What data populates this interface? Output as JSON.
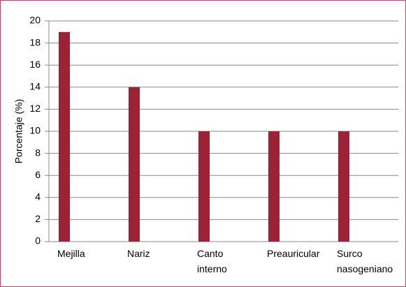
{
  "chart_data": {
    "type": "bar",
    "y_label": "Porcentaje (%)",
    "categories": [
      "Mejilla",
      "Nariz",
      "Canto interno",
      "Preauricular",
      "Surco nasogeniano"
    ],
    "values": [
      19,
      14,
      10,
      10,
      10
    ],
    "color": "#9b2335",
    "ylim": [
      0,
      20
    ],
    "yticks": [
      0,
      2,
      4,
      6,
      8,
      10,
      12,
      14,
      16,
      18,
      20
    ],
    "grid": true
  }
}
